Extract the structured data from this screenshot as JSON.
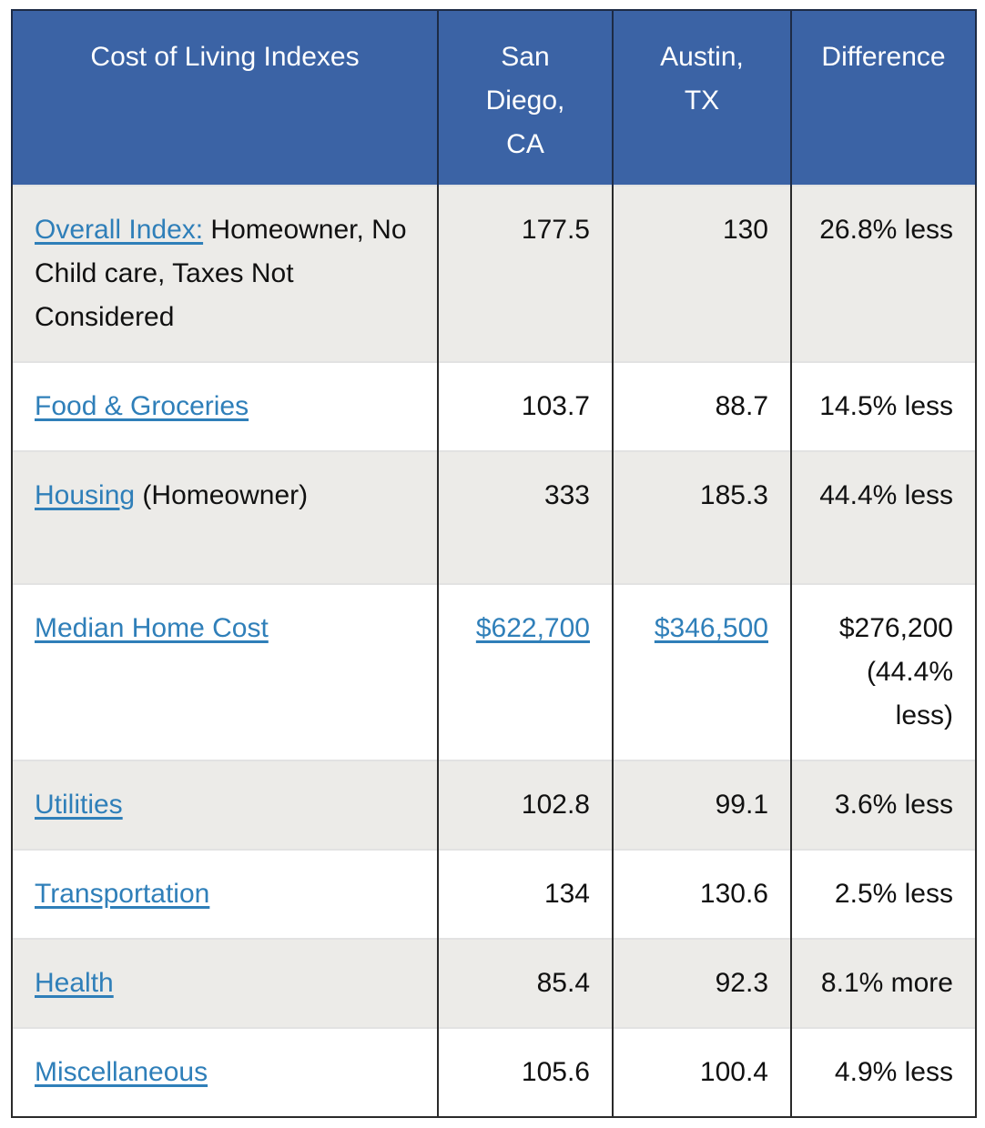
{
  "headers": {
    "col1": "Cost of Living Indexes",
    "col2": "San Diego, CA",
    "col3": "Austin, TX",
    "col4": "Difference"
  },
  "rows": [
    {
      "link": "Overall Index:",
      "suffix": " Homeowner, No Child care, Taxes Not Considered",
      "san_diego": "177.5",
      "austin": "130",
      "difference": "26.8% less"
    },
    {
      "link": "Food & Groceries",
      "suffix": "",
      "san_diego": "103.7",
      "austin": "88.7",
      "difference": "14.5% less"
    },
    {
      "link": "Housing",
      "suffix": " (Homeowner)",
      "san_diego": "333",
      "austin": "185.3",
      "difference": "44.4% less"
    },
    {
      "link": "Median Home Cost",
      "suffix": "",
      "san_diego": "$622,700",
      "austin": "$346,500",
      "difference": "$276,200 (44.4% less)"
    },
    {
      "link": "Utilities",
      "suffix": "",
      "san_diego": "102.8",
      "austin": "99.1",
      "difference": "3.6% less"
    },
    {
      "link": "Transportation",
      "suffix": "",
      "san_diego": "134",
      "austin": "130.6",
      "difference": "2.5% less"
    },
    {
      "link": "Health",
      "suffix": "",
      "san_diego": "85.4",
      "austin": "92.3",
      "difference": "8.1% more"
    },
    {
      "link": "Miscellaneous",
      "suffix": "",
      "san_diego": "105.6",
      "austin": "100.4",
      "difference": "4.9% less"
    }
  ],
  "colors": {
    "header_bg": "#3b63a5",
    "link": "#2f7fb9",
    "shaded_row": "#ecebe8"
  }
}
